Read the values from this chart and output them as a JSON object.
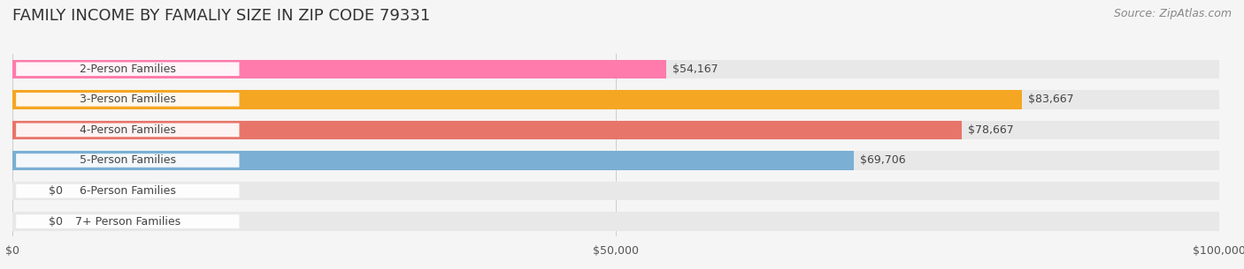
{
  "title": "FAMILY INCOME BY FAMALIY SIZE IN ZIP CODE 79331",
  "source": "Source: ZipAtlas.com",
  "categories": [
    "2-Person Families",
    "3-Person Families",
    "4-Person Families",
    "5-Person Families",
    "6-Person Families",
    "7+ Person Families"
  ],
  "values": [
    54167,
    83667,
    78667,
    69706,
    0,
    0
  ],
  "bar_colors": [
    "#FF7BAC",
    "#F5A623",
    "#E8756A",
    "#7BAFD4",
    "#C3A0D8",
    "#6ECFCF"
  ],
  "label_colors": [
    "#555555",
    "#ffffff",
    "#ffffff",
    "#555555",
    "#555555",
    "#555555"
  ],
  "value_labels": [
    "$54,167",
    "$83,667",
    "$78,667",
    "$69,706",
    "$0",
    "$0"
  ],
  "xlim": [
    0,
    100000
  ],
  "xtick_values": [
    0,
    50000,
    100000
  ],
  "xtick_labels": [
    "$0",
    "$50,000",
    "$100,000"
  ],
  "background_color": "#f5f5f5",
  "bar_background_color": "#e8e8e8",
  "title_fontsize": 13,
  "label_fontsize": 9,
  "value_fontsize": 9,
  "source_fontsize": 9
}
